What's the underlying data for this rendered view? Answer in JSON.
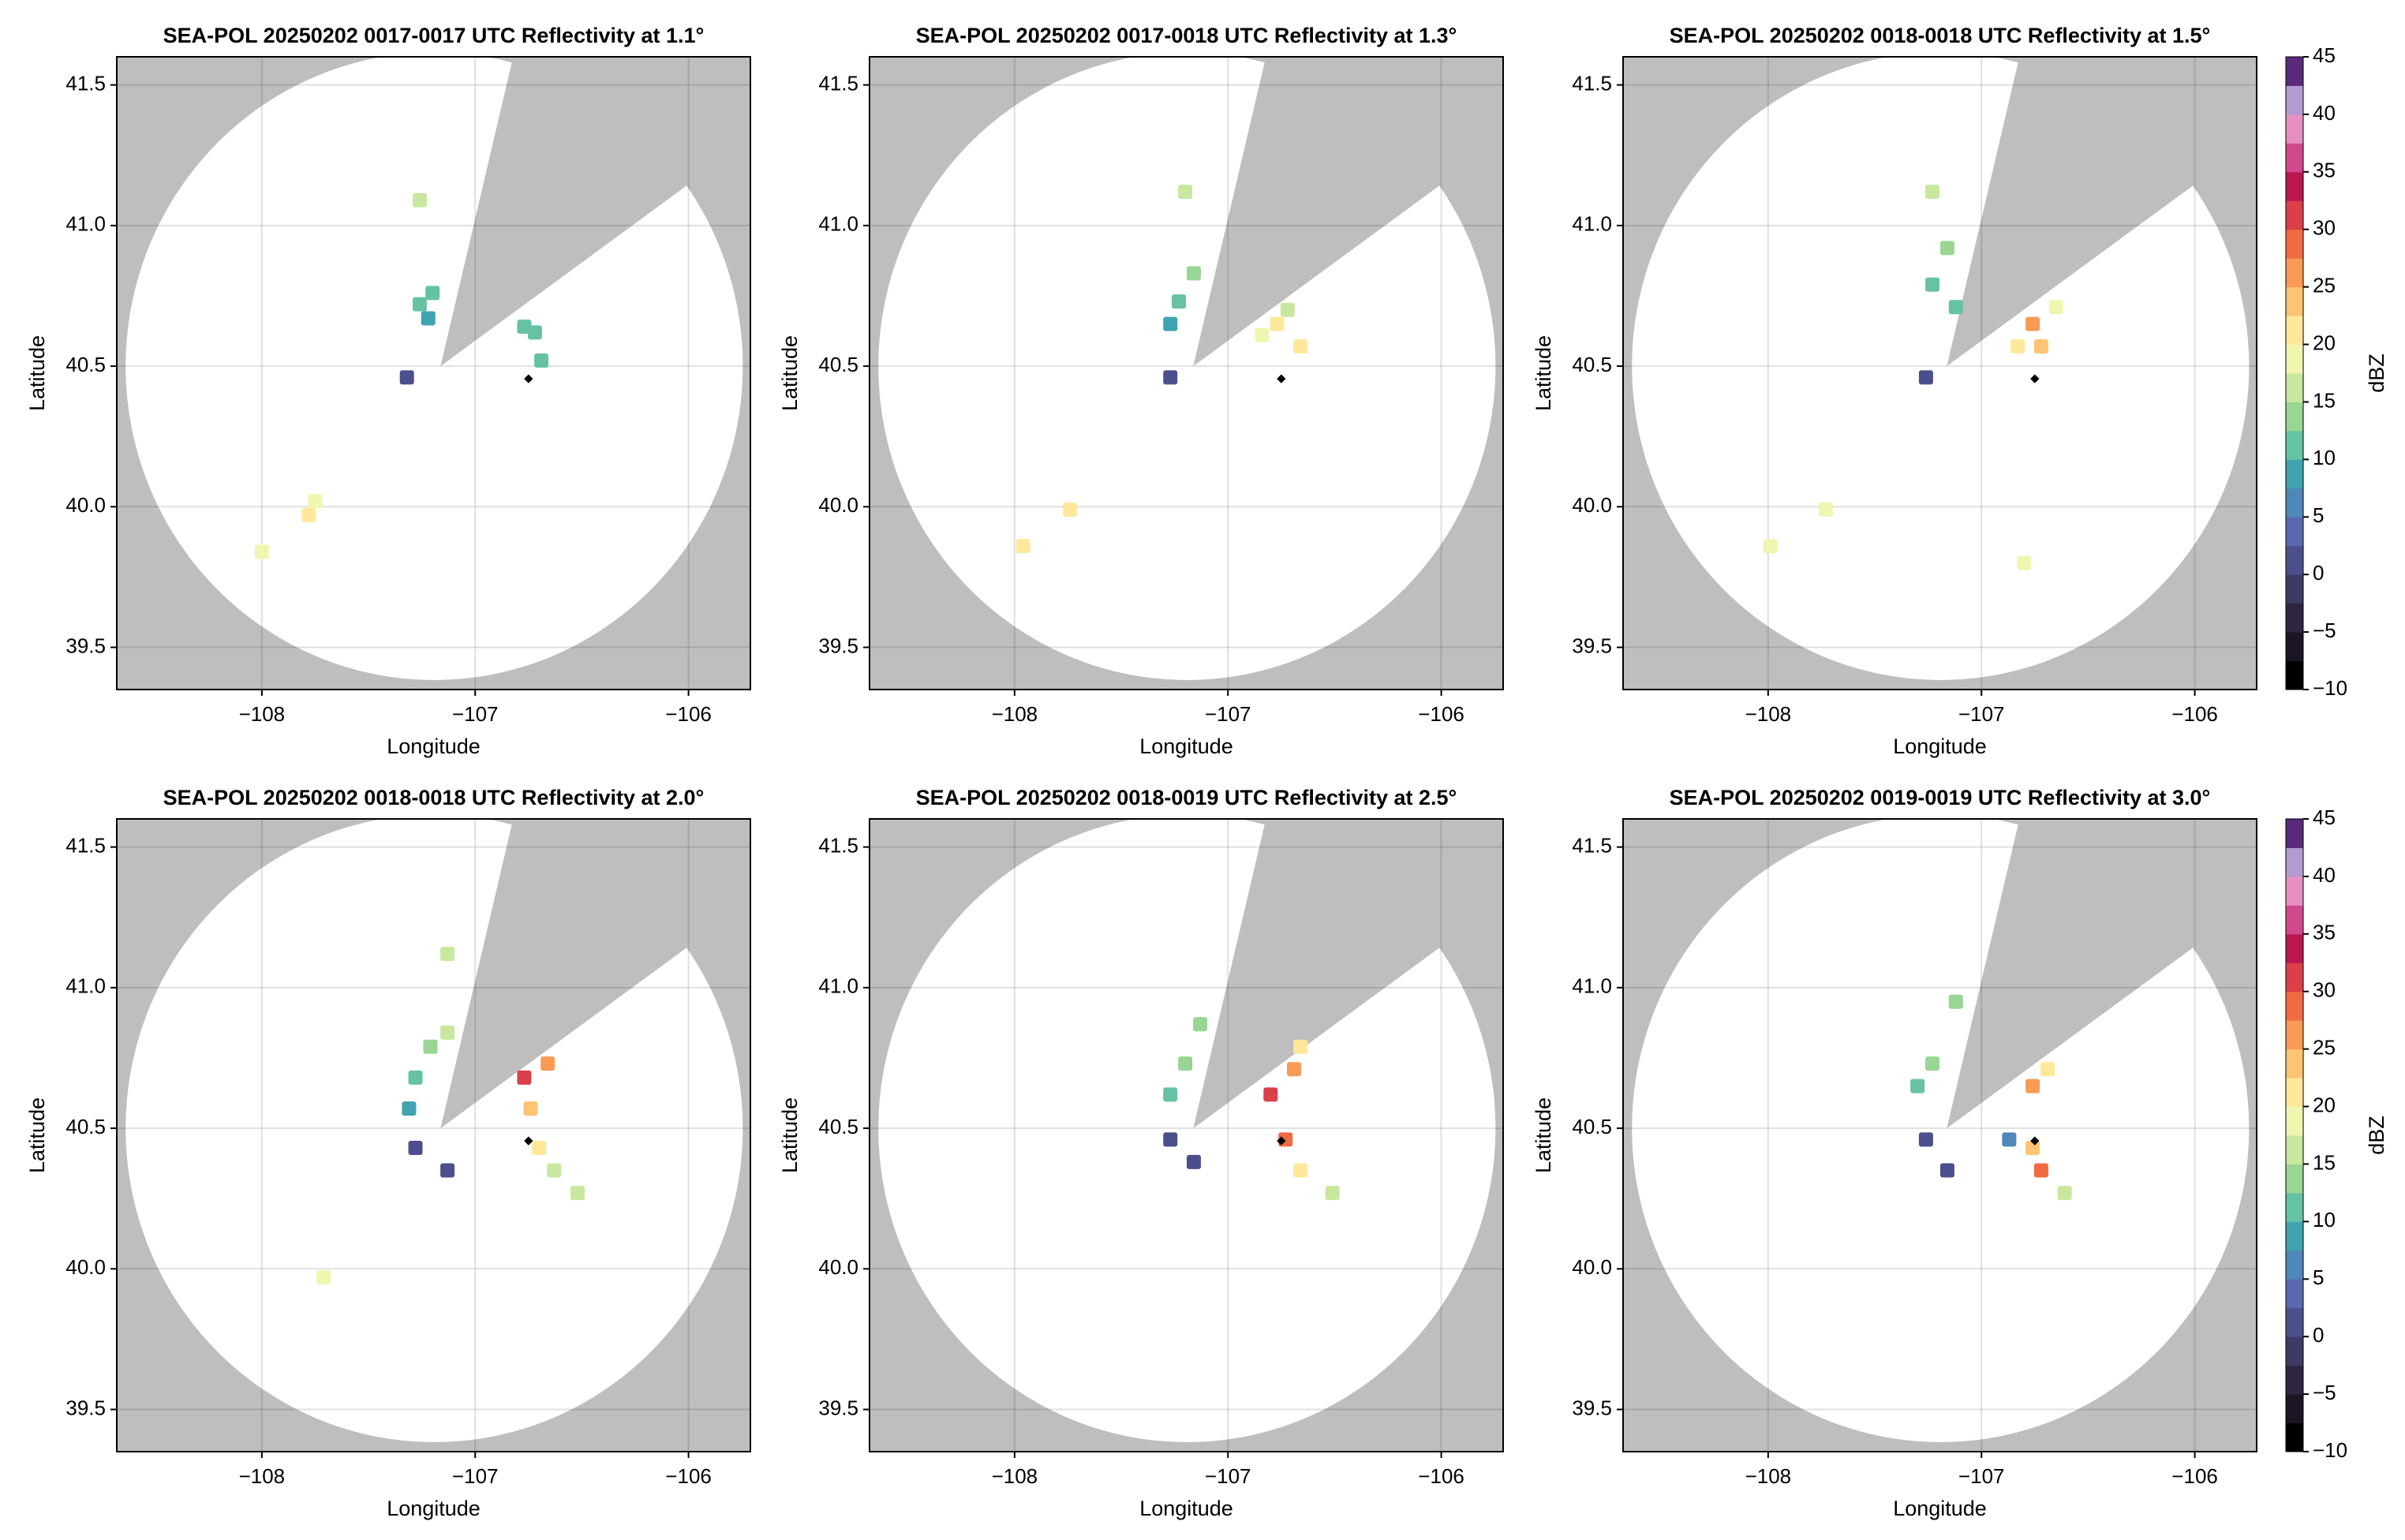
{
  "colormap": {
    "lim": [
      -10,
      45
    ],
    "colors": [
      "#000000",
      "#1b1525",
      "#2e2540",
      "#3d3a63",
      "#4b4f8c",
      "#5a68b0",
      "#4f87b9",
      "#3fa3b0",
      "#66c2a5",
      "#99d594",
      "#c7e89e",
      "#f0f6b0",
      "#fee89a",
      "#fdc473",
      "#f99a55",
      "#ef6c42",
      "#d9404a",
      "#b8174f",
      "#d1488c",
      "#e590c0",
      "#b39ad0",
      "#5b2a7a"
    ]
  },
  "chart_data": [
    {
      "type": "radar",
      "title": "SEA-POL 20250202 0017-0017 UTC Reflectivity at 1.1°",
      "xlabel": "Longitude",
      "ylabel": "Latitude",
      "xlim": [
        -108.68,
        -105.71
      ],
      "ylim": [
        39.35,
        41.6
      ],
      "xticks": [
        {
          "value": -108,
          "label": "−108"
        },
        {
          "value": -107,
          "label": "−107"
        },
        {
          "value": -106,
          "label": "−106"
        }
      ],
      "yticks": [
        39.5,
        {
          "value": 40,
          "label": "40.0"
        },
        40.5,
        {
          "value": 41,
          "label": "41.0"
        },
        41.5
      ],
      "grid": true,
      "x": [
        -107.26,
        -107.22,
        -107.2,
        -106.77,
        -106.72,
        -107.75,
        -107.78,
        -108.0,
        -107.26,
        -107.32,
        -106.69
      ],
      "y": [
        40.72,
        40.67,
        40.76,
        40.64,
        40.62,
        40.02,
        39.97,
        39.84,
        41.09,
        40.46,
        40.52
      ],
      "values": [
        10,
        8,
        12,
        12,
        10,
        18,
        20,
        18,
        17,
        0,
        10
      ],
      "marker": {
        "x": -106.75,
        "y": 40.455,
        "color": "#000000"
      }
    },
    {
      "type": "radar",
      "title": "SEA-POL 20250202 0017-0018 UTC Reflectivity at 1.3°",
      "xlabel": "Longitude",
      "ylabel": "Latitude",
      "xlim": [
        -108.68,
        -105.71
      ],
      "ylim": [
        39.35,
        41.6
      ],
      "xticks": [
        {
          "value": -108,
          "label": "−108"
        },
        {
          "value": -107,
          "label": "−107"
        },
        {
          "value": -106,
          "label": "−106"
        }
      ],
      "yticks": [
        39.5,
        {
          "value": 40,
          "label": "40.0"
        },
        40.5,
        {
          "value": 41,
          "label": "41.0"
        },
        41.5
      ],
      "grid": true,
      "x": [
        -107.23,
        -107.27,
        -107.16,
        -106.77,
        -106.66,
        -106.84,
        -106.72,
        -107.2,
        -107.74,
        -107.96,
        -107.27
      ],
      "y": [
        40.73,
        40.65,
        40.83,
        40.65,
        40.57,
        40.61,
        40.7,
        41.12,
        39.99,
        39.86,
        40.46
      ],
      "values": [
        12,
        8,
        14,
        22,
        20,
        18,
        17,
        16,
        22,
        22,
        2
      ],
      "marker": {
        "x": -106.75,
        "y": 40.455,
        "color": "#000000"
      }
    },
    {
      "type": "radar",
      "title": "SEA-POL 20250202 0018-0018 UTC Reflectivity at 1.5°",
      "xlabel": "Longitude",
      "ylabel": "Latitude",
      "xlim": [
        -108.68,
        -105.71
      ],
      "ylim": [
        39.35,
        41.6
      ],
      "xticks": [
        {
          "value": -108,
          "label": "−108"
        },
        {
          "value": -107,
          "label": "−107"
        },
        {
          "value": -106,
          "label": "−106"
        }
      ],
      "yticks": [
        39.5,
        {
          "value": 40,
          "label": "40.0"
        },
        40.5,
        {
          "value": 41,
          "label": "41.0"
        },
        41.5
      ],
      "grid": true,
      "x": [
        -107.23,
        -107.12,
        -107.16,
        -106.76,
        -106.72,
        -106.65,
        -106.83,
        -107.23,
        -107.73,
        -107.99,
        -107.26,
        -106.8
      ],
      "y": [
        40.79,
        40.71,
        40.92,
        40.65,
        40.57,
        40.71,
        40.57,
        41.12,
        39.99,
        39.86,
        40.46,
        39.8
      ],
      "values": [
        12,
        10,
        14,
        26,
        24,
        18,
        20,
        16,
        18,
        18,
        2,
        18
      ],
      "marker": {
        "x": -106.75,
        "y": 40.455,
        "color": "#000000"
      },
      "colorbar": {
        "label": "dBZ",
        "ticks": [
          {
            "value": -10,
            "label": "−10"
          },
          {
            "value": -5,
            "label": "−5"
          },
          0,
          5,
          10,
          15,
          20,
          25,
          30,
          35,
          40,
          45
        ]
      }
    },
    {
      "type": "radar",
      "title": "SEA-POL 20250202 0018-0018 UTC Reflectivity at 2.0°",
      "xlabel": "Longitude",
      "ylabel": "Latitude",
      "xlim": [
        -108.68,
        -105.71
      ],
      "ylim": [
        39.35,
        41.6
      ],
      "xticks": [
        {
          "value": -108,
          "label": "−108"
        },
        {
          "value": -107,
          "label": "−107"
        },
        {
          "value": -106,
          "label": "−106"
        }
      ],
      "yticks": [
        39.5,
        {
          "value": 40,
          "label": "40.0"
        },
        40.5,
        {
          "value": 41,
          "label": "41.0"
        },
        41.5
      ],
      "grid": true,
      "x": [
        -107.21,
        -107.28,
        -107.13,
        -106.77,
        -106.66,
        -106.74,
        -106.7,
        -106.63,
        -106.52,
        -107.13,
        -107.28,
        -107.71,
        -107.13,
        -107.31
      ],
      "y": [
        40.79,
        40.68,
        40.84,
        40.68,
        40.73,
        40.57,
        40.43,
        40.35,
        40.27,
        40.35,
        40.43,
        39.97,
        41.12,
        40.57
      ],
      "values": [
        14,
        10,
        16,
        30,
        26,
        24,
        22,
        16,
        16,
        2,
        2,
        18,
        16,
        8
      ],
      "marker": {
        "x": -106.75,
        "y": 40.455,
        "color": "#000000"
      }
    },
    {
      "type": "radar",
      "title": "SEA-POL 20250202 0018-0019 UTC Reflectivity at 2.5°",
      "xlabel": "Longitude",
      "ylabel": "Latitude",
      "xlim": [
        -108.68,
        -105.71
      ],
      "ylim": [
        39.35,
        41.6
      ],
      "xticks": [
        {
          "value": -108,
          "label": "−108"
        },
        {
          "value": -107,
          "label": "−107"
        },
        {
          "value": -106,
          "label": "−106"
        }
      ],
      "yticks": [
        39.5,
        {
          "value": 40,
          "label": "40.0"
        },
        40.5,
        {
          "value": 41,
          "label": "41.0"
        },
        41.5
      ],
      "grid": true,
      "x": [
        -107.2,
        -107.27,
        -106.8,
        -106.69,
        -106.73,
        -106.66,
        -106.51,
        -107.16,
        -107.27,
        -107.13,
        -106.66
      ],
      "y": [
        40.73,
        40.62,
        40.62,
        40.71,
        40.46,
        40.35,
        40.27,
        40.38,
        40.46,
        40.87,
        40.79
      ],
      "values": [
        14,
        10,
        30,
        26,
        28,
        22,
        16,
        2,
        2,
        14,
        20
      ],
      "marker": {
        "x": -106.75,
        "y": 40.455,
        "color": "#000000"
      }
    },
    {
      "type": "radar",
      "title": "SEA-POL 20250202 0019-0019 UTC Reflectivity at 3.0°",
      "xlabel": "Longitude",
      "ylabel": "Latitude",
      "xlim": [
        -108.68,
        -105.71
      ],
      "ylim": [
        39.35,
        41.6
      ],
      "xticks": [
        {
          "value": -108,
          "label": "−108"
        },
        {
          "value": -107,
          "label": "−107"
        },
        {
          "value": -106,
          "label": "−106"
        }
      ],
      "yticks": [
        39.5,
        {
          "value": 40,
          "label": "40.0"
        },
        40.5,
        {
          "value": 41,
          "label": "41.0"
        },
        41.5
      ],
      "grid": true,
      "x": [
        -107.23,
        -107.3,
        -106.76,
        -106.69,
        -106.72,
        -106.76,
        -106.87,
        -107.16,
        -107.26,
        -106.61,
        -107.12
      ],
      "y": [
        40.73,
        40.65,
        40.65,
        40.71,
        40.35,
        40.43,
        40.46,
        40.35,
        40.46,
        40.27,
        40.95
      ],
      "values": [
        14,
        10,
        26,
        20,
        28,
        24,
        6,
        2,
        2,
        16,
        14
      ],
      "marker": {
        "x": -106.75,
        "y": 40.455,
        "color": "#000000"
      },
      "colorbar": {
        "label": "dBZ",
        "ticks": [
          {
            "value": -10,
            "label": "−10"
          },
          {
            "value": -5,
            "label": "−5"
          },
          0,
          5,
          10,
          15,
          20,
          25,
          30,
          35,
          40,
          45
        ]
      }
    }
  ]
}
